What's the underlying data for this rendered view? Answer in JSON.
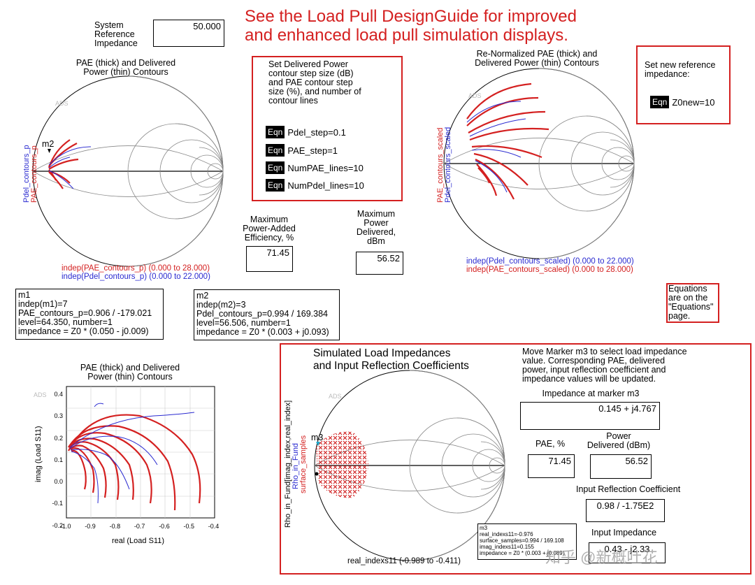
{
  "title": {
    "line1": "See the Load Pull DesignGuide for improved",
    "line2": "and enhanced load pull simulation displays."
  },
  "colors": {
    "red": "#d42020",
    "blue": "#2a2ad0",
    "dark_red": "#cc1111"
  },
  "system_ref": {
    "label1": "System",
    "label2": "Reference",
    "label3": "Impedance",
    "value": "50.000"
  },
  "smith1": {
    "title1": "PAE (thick) and Delivered",
    "title2": "Power (thin) Contours",
    "ads": "ADS",
    "marker": "m2",
    "ylabel_blue": "Pdel_contours_p",
    "ylabel_red": "PAE_contours_p",
    "legend_red": "indep(PAE_contours_p) (0.000 to 28.000)",
    "legend_blue": "indep(Pdel_contours_p) (0.000 to 22.000)"
  },
  "step_box": {
    "line1": "Set Delivered Power",
    "line2": "contour step size (dB)",
    "line3": "and PAE contour step",
    "line4": "size (%), and number of",
    "line5": "contour lines",
    "eqn": "Eqn",
    "eq1": "Pdel_step=0.1",
    "eq2": "PAE_step=1",
    "eq3": "NumPAE_lines=10",
    "eq4": "NumPdel_lines=10"
  },
  "max_pae": {
    "label1": "Maximum",
    "label2": "Power-Added",
    "label3": "Efficiency, %",
    "value": "71.45"
  },
  "max_power": {
    "label1": "Maximum",
    "label2": "Power",
    "label3": "Delivered,",
    "label4": "dBm",
    "value": "56.52"
  },
  "smith2": {
    "title1": "Re-Normalized PAE (thick) and",
    "title2": "Delivered Power (thin) Contours",
    "ads": "ADS",
    "ylabel_red": "PAE_contours_scaled",
    "ylabel_blue": "Pdel_contours_scaled",
    "legend_blue": "indep(Pdel_contours_scaled) (0.000 to 22.000)",
    "legend_red": "indep(PAE_contours_scaled) (0.000 to 28.000)"
  },
  "new_ref": {
    "line1": "Set new reference",
    "line2": "impedance:",
    "eqn": "Eqn",
    "eq": "Z0new=10"
  },
  "equations_note": {
    "line1": "Equations",
    "line2": "are on the",
    "line3": "\"Equations\"",
    "line4": "page."
  },
  "m1_box": {
    "line1": "m1",
    "line2": "indep(m1)=7",
    "line3": "PAE_contours_p=0.906 / -179.021",
    "line4": "level=64.350, number=1",
    "line5": "impedance = Z0 * (0.050 - j0.009)"
  },
  "m2_box": {
    "line1": "m2",
    "line2": "indep(m2)=3",
    "line3": "Pdel_contours_p=0.994 / 169.384",
    "line4": "level=56.506, number=1",
    "line5": "impedance = Z0 * (0.003 + j0.093)"
  },
  "rect_plot": {
    "title1": "PAE (thick) and Delivered",
    "title2": "Power (thin) Contours",
    "ads": "ADS",
    "ylabel": "imag (Load S11)",
    "xlabel": "real (Load S11)",
    "yticks": [
      "0.4",
      "0.3",
      "0.2",
      "0.1",
      "0.0",
      "-0.1",
      "-0.2"
    ],
    "xticks": [
      "-1.0",
      "-0.9",
      "-0.8",
      "-0.7",
      "-0.6",
      "-0.5",
      "-0.4"
    ]
  },
  "sim_panel": {
    "title1": "Simulated Load Impedances",
    "title2": "and Input Reflection Coefficients",
    "desc1": "Move Marker m3 to select load impedance",
    "desc2": "value.  Corresponding PAE, delivered",
    "desc3": "power, input reflection coefficient and",
    "desc4": "impedance values will be updated.",
    "ads": "ADS",
    "marker": "m3",
    "ylabel1": "Rho_in_Fund[imag_index,real_index]",
    "ylabel2": "Rho_in_Fund",
    "ylabel3": "surface_samples",
    "xlabel": "real_indexs11 (-0.989 to -0.411)",
    "imp_label": "Impedance at marker m3",
    "imp_value": "0.145 + j4.767",
    "pae_label": "PAE, %",
    "pae_value": "71.45",
    "power_label1": "Power",
    "power_label2": "Delivered (dBm)",
    "power_value": "56.52",
    "irc_label": "Input Reflection Coefficient",
    "irc_value": "0.98 / -1.75E2",
    "in_imp_label": "Input Impedance",
    "in_imp_value": "0.43 - j2.33",
    "m3_box": {
      "line1": "m3",
      "line2": "real_indexs11=-0.976",
      "line3": "surface_samples=0.994 / 169.108",
      "line4": "imag_indexs11=0.155",
      "line5": "impedance = Z0 * (0.003 + j0.089)"
    }
  },
  "watermark": "知乎 @新概吐花"
}
